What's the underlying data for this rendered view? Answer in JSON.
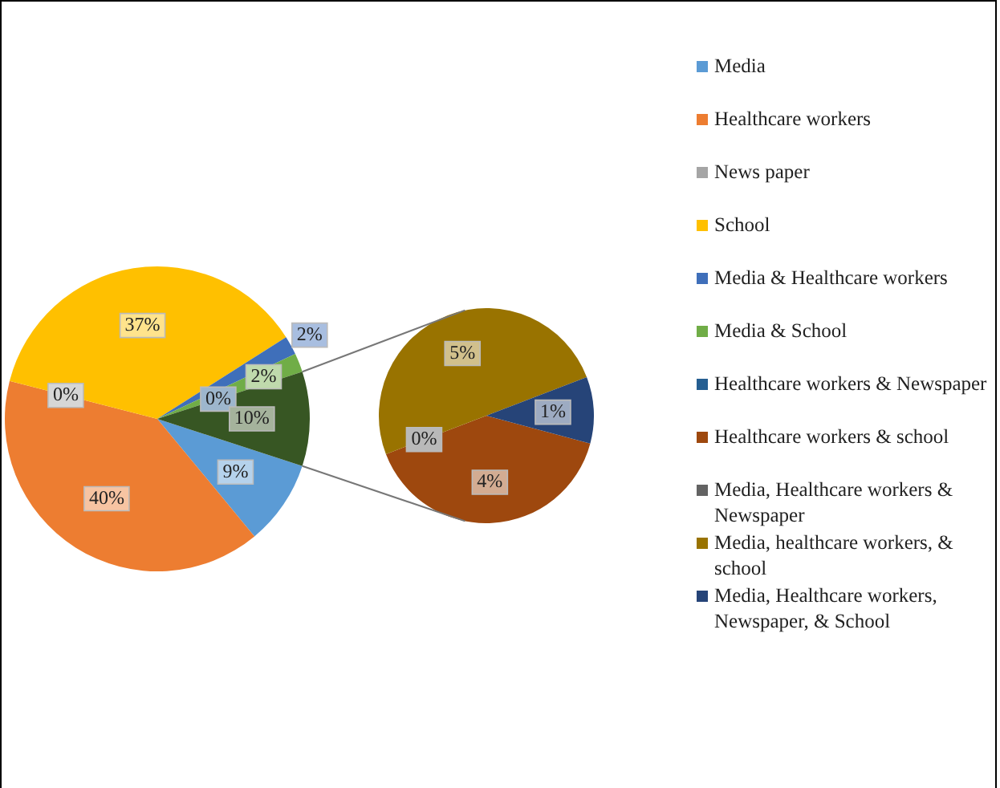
{
  "chart_data": [
    {
      "type": "pie",
      "categories": [
        "Media",
        "Healthcare workers",
        "News paper",
        "School",
        "Media & Healthcare workers",
        "Media & School",
        "Healthcare workers & Newspaper",
        null
      ],
      "values": [
        9,
        40,
        0,
        37,
        2,
        2,
        0,
        10
      ],
      "colors": [
        "#5b9bd5",
        "#ed7d31",
        "#a5a5a5",
        "#ffc000",
        "#3f6fba",
        "#70ad47",
        "#255e91",
        "#375623"
      ],
      "value_labels": [
        "9%",
        "40%",
        "0%",
        "37%",
        "2%",
        "2%",
        "0%",
        "10%"
      ],
      "legend": "right"
    },
    {
      "type": "pie",
      "categories": [
        "Healthcare workers & school",
        "Media, Healthcare workers & Newspaper",
        "Media, healthcare workers, & school",
        "Media, Healthcare workers, Newspaper, & School"
      ],
      "values": [
        4,
        0,
        5,
        1
      ],
      "colors": [
        "#9e480e",
        "#636363",
        "#997300",
        "#264478"
      ],
      "value_labels": [
        "4%",
        "0%",
        "5%",
        "1%"
      ],
      "legend": "right"
    }
  ]
}
